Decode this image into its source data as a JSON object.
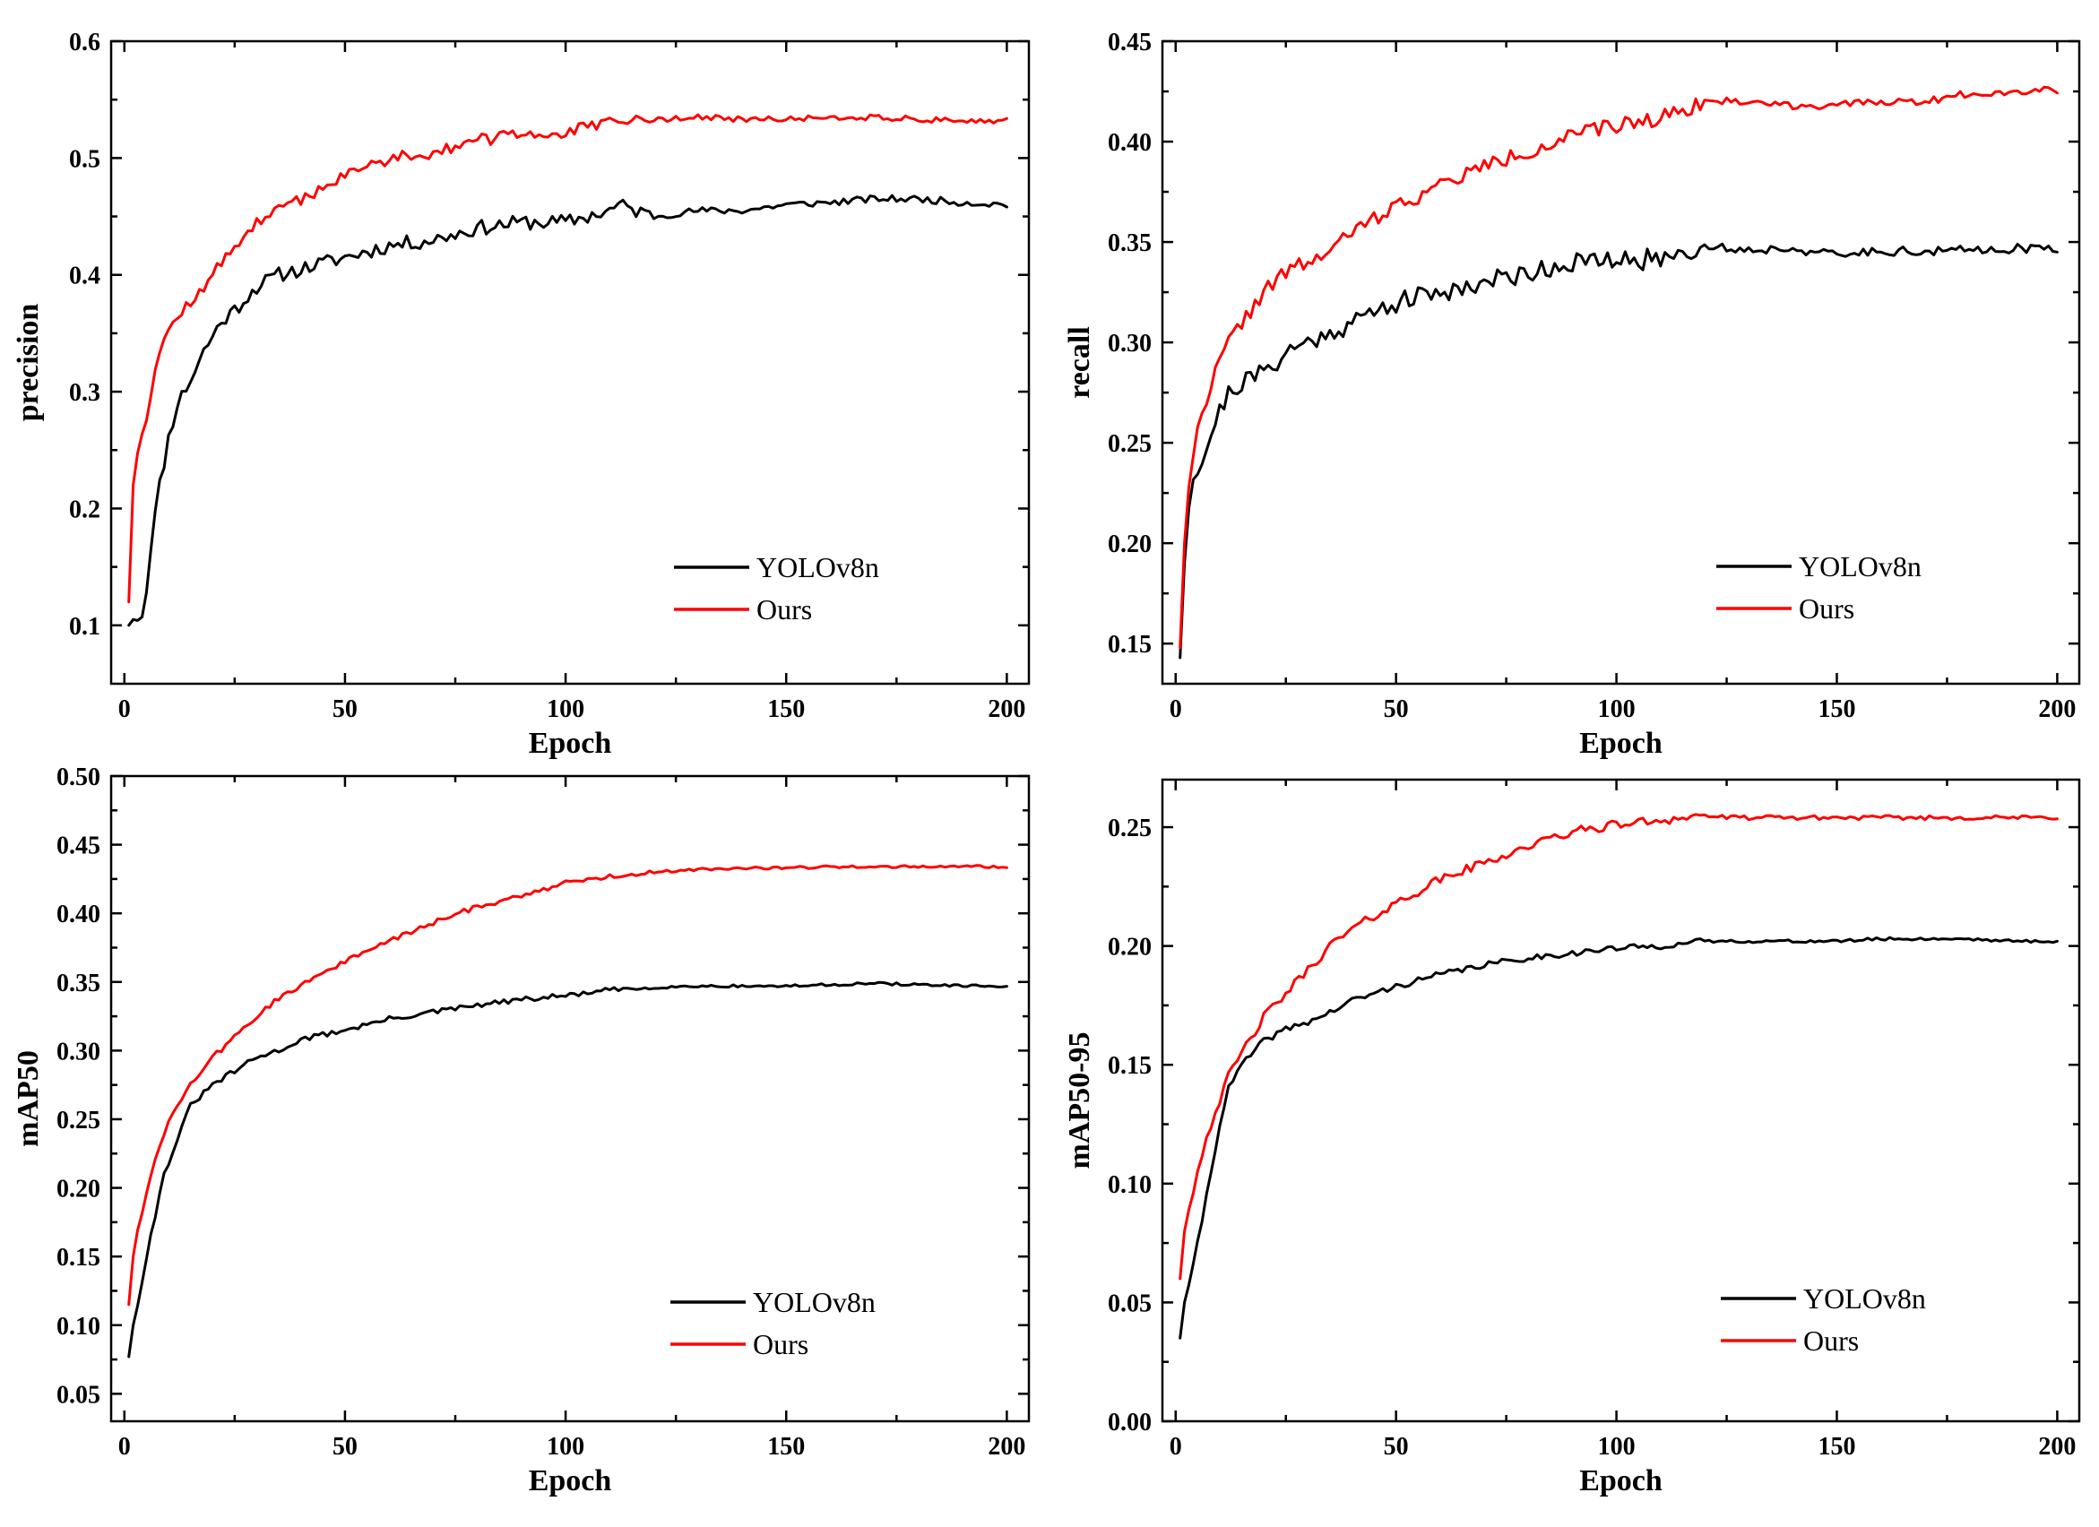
{
  "colors": {
    "yolo": "#000000",
    "ours": "#ff0000"
  },
  "chart_data": [
    {
      "type": "line",
      "ylabel": "precision",
      "xlabel": "Epoch",
      "xlim": [
        -3,
        205
      ],
      "ylim": [
        0.05,
        0.6
      ],
      "xticks": [
        0,
        50,
        100,
        150,
        200
      ],
      "yticks": [
        0.1,
        0.2,
        0.3,
        0.4,
        0.5,
        0.6
      ],
      "ytick_labels": [
        "0.1",
        "0.2",
        "0.3",
        "0.4",
        "0.5",
        "0.6"
      ],
      "legend": {
        "position": "bottom-right",
        "entries": [
          "YOLOv8n",
          "Ours"
        ]
      },
      "series": [
        {
          "name": "YOLOv8n",
          "color": "#000000",
          "noise": 0.005,
          "seed": 11,
          "x": [
            1,
            2,
            4,
            5,
            6,
            8,
            10,
            12,
            15,
            18,
            22,
            25,
            30,
            35,
            40,
            45,
            50,
            55,
            60,
            70,
            80,
            90,
            100,
            110,
            112,
            120,
            130,
            140,
            150,
            160,
            170,
            180,
            190,
            200
          ],
          "y": [
            0.1,
            0.105,
            0.11,
            0.13,
            0.17,
            0.22,
            0.26,
            0.29,
            0.31,
            0.335,
            0.36,
            0.37,
            0.39,
            0.4,
            0.405,
            0.41,
            0.415,
            0.42,
            0.425,
            0.43,
            0.44,
            0.445,
            0.445,
            0.455,
            0.46,
            0.45,
            0.455,
            0.455,
            0.46,
            0.462,
            0.465,
            0.465,
            0.462,
            0.46
          ]
        },
        {
          "name": "Ours",
          "color": "#ff0000",
          "noise": 0.004,
          "seed": 12,
          "x": [
            1,
            2,
            3,
            5,
            7,
            9,
            12,
            15,
            20,
            25,
            30,
            35,
            40,
            50,
            60,
            70,
            80,
            90,
            100,
            110,
            120,
            130,
            140,
            150,
            160,
            170,
            180,
            190,
            200
          ],
          "y": [
            0.12,
            0.22,
            0.25,
            0.28,
            0.32,
            0.345,
            0.365,
            0.375,
            0.4,
            0.425,
            0.445,
            0.455,
            0.465,
            0.485,
            0.5,
            0.505,
            0.515,
            0.52,
            0.522,
            0.53,
            0.533,
            0.535,
            0.533,
            0.533,
            0.535,
            0.535,
            0.533,
            0.532,
            0.532
          ]
        }
      ]
    },
    {
      "type": "line",
      "ylabel": "recall",
      "xlabel": "Epoch",
      "xlim": [
        -3,
        205
      ],
      "ylim": [
        0.13,
        0.45
      ],
      "xticks": [
        0,
        50,
        100,
        150,
        200
      ],
      "yticks": [
        0.15,
        0.2,
        0.25,
        0.3,
        0.35,
        0.4,
        0.45
      ],
      "ytick_labels": [
        "0.15",
        "0.20",
        "0.25",
        "0.30",
        "0.35",
        "0.40",
        "0.45"
      ],
      "legend": {
        "position": "bottom-right",
        "entries": [
          "YOLOv8n",
          "Ours"
        ]
      },
      "series": [
        {
          "name": "YOLOv8n",
          "color": "#000000",
          "noise": 0.004,
          "seed": 21,
          "x": [
            1,
            2,
            3,
            4,
            6,
            8,
            10,
            12,
            15,
            20,
            25,
            30,
            35,
            40,
            50,
            60,
            70,
            80,
            90,
            100,
            110,
            120,
            130,
            140,
            150,
            160,
            170,
            180,
            190,
            200
          ],
          "y": [
            0.143,
            0.19,
            0.22,
            0.235,
            0.24,
            0.255,
            0.265,
            0.275,
            0.28,
            0.285,
            0.295,
            0.3,
            0.305,
            0.31,
            0.32,
            0.325,
            0.33,
            0.335,
            0.34,
            0.34,
            0.342,
            0.348,
            0.346,
            0.347,
            0.343,
            0.346,
            0.345,
            0.346,
            0.347,
            0.346
          ]
        },
        {
          "name": "Ours",
          "color": "#ff0000",
          "noise": 0.003,
          "seed": 22,
          "x": [
            1,
            2,
            3,
            4,
            6,
            8,
            10,
            12,
            15,
            20,
            25,
            30,
            35,
            40,
            50,
            60,
            70,
            80,
            90,
            100,
            110,
            120,
            130,
            140,
            150,
            160,
            170,
            180,
            190,
            200
          ],
          "y": [
            0.148,
            0.2,
            0.23,
            0.245,
            0.265,
            0.28,
            0.29,
            0.3,
            0.31,
            0.325,
            0.335,
            0.34,
            0.345,
            0.355,
            0.368,
            0.378,
            0.388,
            0.395,
            0.403,
            0.408,
            0.412,
            0.42,
            0.42,
            0.418,
            0.418,
            0.42,
            0.42,
            0.424,
            0.425,
            0.426
          ]
        }
      ]
    },
    {
      "type": "line",
      "ylabel": "mAP50",
      "xlabel": "Epoch",
      "xlim": [
        -3,
        205
      ],
      "ylim": [
        0.03,
        0.5
      ],
      "xticks": [
        0,
        50,
        100,
        150,
        200
      ],
      "yticks": [
        0.05,
        0.1,
        0.15,
        0.2,
        0.25,
        0.3,
        0.35,
        0.4,
        0.45,
        0.5
      ],
      "ytick_labels": [
        "0.05",
        "0.10",
        "0.15",
        "0.20",
        "0.25",
        "0.30",
        "0.35",
        "0.40",
        "0.45",
        "0.50"
      ],
      "legend": {
        "position": "bottom-right",
        "entries": [
          "YOLOv8n",
          "Ours"
        ]
      },
      "series": [
        {
          "name": "YOLOv8n",
          "color": "#000000",
          "noise": 0.0015,
          "seed": 31,
          "x": [
            1,
            2,
            3,
            5,
            7,
            9,
            12,
            15,
            20,
            25,
            30,
            35,
            40,
            50,
            60,
            70,
            80,
            90,
            100,
            110,
            120,
            130,
            140,
            150,
            160,
            170,
            180,
            190,
            200
          ],
          "y": [
            0.077,
            0.1,
            0.115,
            0.15,
            0.18,
            0.21,
            0.235,
            0.26,
            0.275,
            0.285,
            0.295,
            0.3,
            0.308,
            0.315,
            0.323,
            0.328,
            0.333,
            0.337,
            0.34,
            0.344,
            0.346,
            0.347,
            0.347,
            0.347,
            0.348,
            0.349,
            0.348,
            0.347,
            0.347
          ]
        },
        {
          "name": "Ours",
          "color": "#ff0000",
          "noise": 0.0015,
          "seed": 32,
          "x": [
            1,
            2,
            3,
            5,
            7,
            9,
            12,
            15,
            20,
            25,
            30,
            35,
            40,
            50,
            60,
            70,
            80,
            90,
            100,
            110,
            120,
            130,
            140,
            150,
            160,
            170,
            180,
            190,
            200
          ],
          "y": [
            0.115,
            0.15,
            0.17,
            0.195,
            0.22,
            0.24,
            0.26,
            0.275,
            0.295,
            0.31,
            0.325,
            0.338,
            0.348,
            0.365,
            0.38,
            0.393,
            0.405,
            0.413,
            0.422,
            0.427,
            0.43,
            0.432,
            0.433,
            0.433,
            0.434,
            0.434,
            0.434,
            0.434,
            0.434
          ]
        }
      ]
    },
    {
      "type": "line",
      "ylabel": "mAP50-95",
      "xlabel": "Epoch",
      "xlim": [
        -3,
        205
      ],
      "ylim": [
        0.0,
        0.27
      ],
      "xticks": [
        0,
        50,
        100,
        150,
        200
      ],
      "yticks": [
        0.0,
        0.05,
        0.1,
        0.15,
        0.2,
        0.25
      ],
      "ytick_labels": [
        "0.00",
        "0.05",
        "0.10",
        "0.15",
        "0.20",
        "0.25"
      ],
      "legend": {
        "position": "bottom-right",
        "entries": [
          "YOLOv8n",
          "Ours"
        ]
      },
      "series": [
        {
          "name": "YOLOv8n",
          "color": "#000000",
          "noise": 0.001,
          "seed": 41,
          "x": [
            1,
            2,
            3,
            4,
            6,
            8,
            10,
            12,
            15,
            20,
            25,
            30,
            35,
            40,
            50,
            60,
            70,
            80,
            90,
            100,
            110,
            120,
            130,
            140,
            150,
            160,
            170,
            180,
            190,
            200
          ],
          "y": [
            0.035,
            0.05,
            0.058,
            0.065,
            0.085,
            0.105,
            0.125,
            0.14,
            0.15,
            0.16,
            0.165,
            0.168,
            0.172,
            0.177,
            0.183,
            0.188,
            0.192,
            0.195,
            0.197,
            0.199,
            0.2,
            0.202,
            0.202,
            0.202,
            0.202,
            0.203,
            0.203,
            0.203,
            0.202,
            0.202
          ]
        },
        {
          "name": "Ours",
          "color": "#ff0000",
          "noise": 0.0015,
          "seed": 42,
          "x": [
            1,
            2,
            3,
            5,
            7,
            9,
            12,
            15,
            20,
            25,
            30,
            35,
            40,
            50,
            60,
            70,
            80,
            90,
            100,
            110,
            120,
            125,
            130,
            140,
            150,
            160,
            170,
            180,
            190,
            200
          ],
          "y": [
            0.06,
            0.08,
            0.09,
            0.105,
            0.12,
            0.13,
            0.145,
            0.155,
            0.17,
            0.18,
            0.19,
            0.2,
            0.207,
            0.218,
            0.228,
            0.235,
            0.242,
            0.248,
            0.251,
            0.253,
            0.255,
            0.254,
            0.254,
            0.254,
            0.254,
            0.254,
            0.254,
            0.254,
            0.254,
            0.254
          ]
        }
      ]
    }
  ]
}
